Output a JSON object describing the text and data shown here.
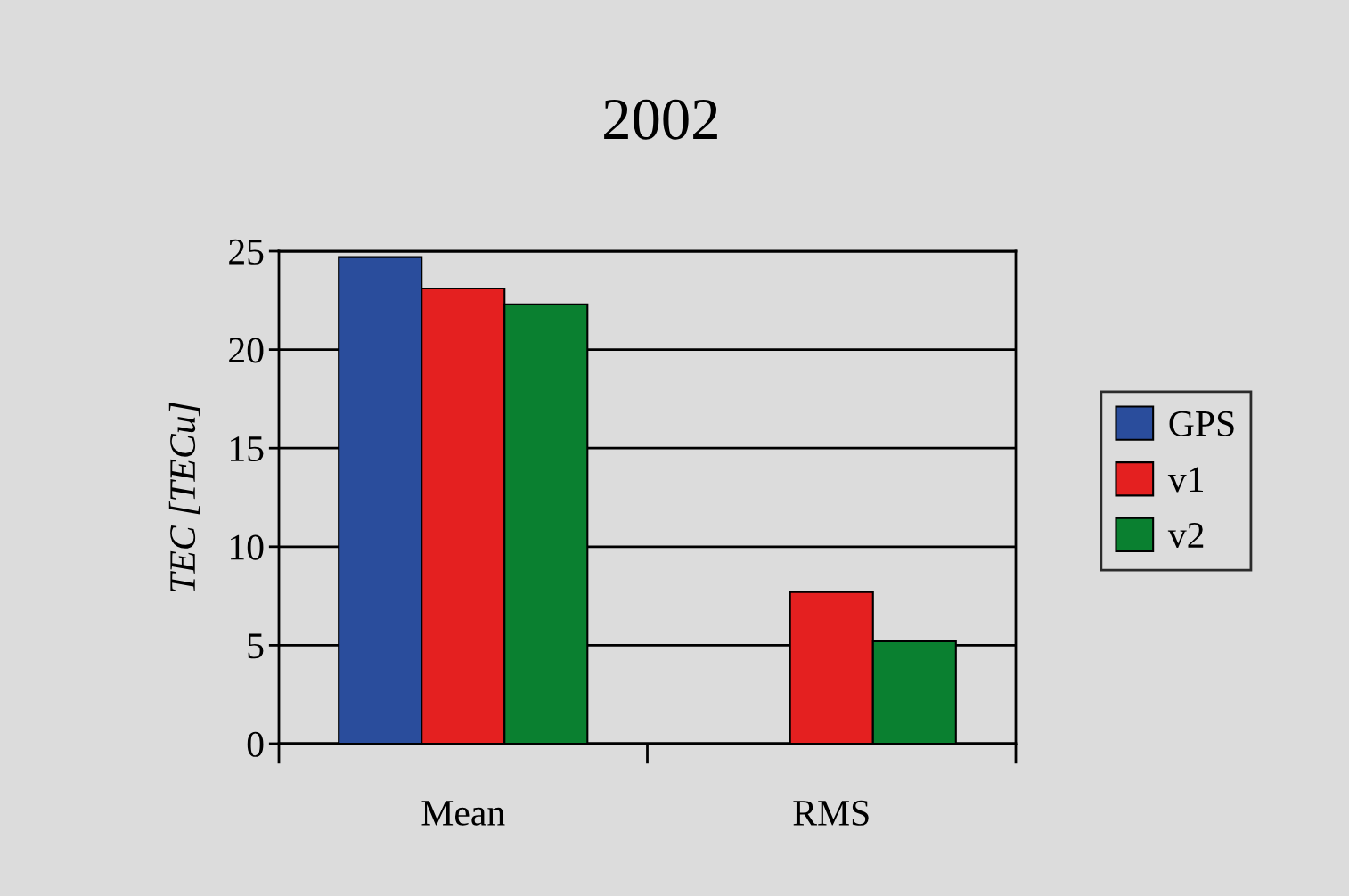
{
  "chart_data": {
    "type": "bar",
    "title": "2002",
    "ylabel": "TEC [TECu]",
    "categories": [
      "Mean",
      "RMS"
    ],
    "series": [
      {
        "name": "GPS",
        "color": "#2a4d9c",
        "values": [
          24.7,
          null
        ]
      },
      {
        "name": "v1",
        "color": "#e42020",
        "values": [
          23.1,
          7.7
        ]
      },
      {
        "name": "v2",
        "color": "#0a8030",
        "values": [
          22.3,
          5.2
        ]
      }
    ],
    "ylim": [
      0,
      25
    ],
    "yticks": [
      0,
      5,
      10,
      15,
      20,
      25
    ],
    "grid": "y",
    "legend": "right"
  }
}
